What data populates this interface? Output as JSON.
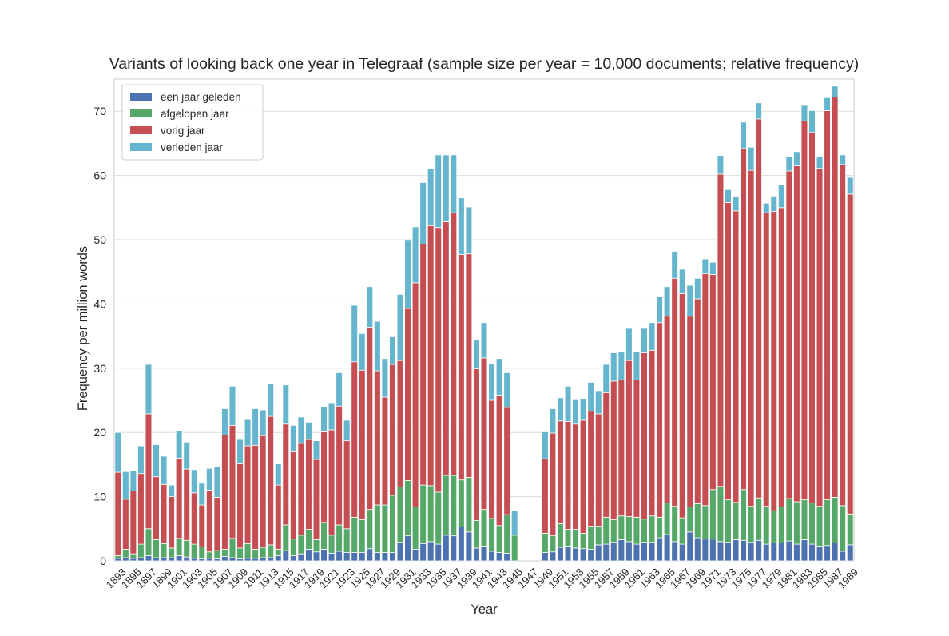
{
  "chart_data": {
    "type": "bar",
    "stacked": true,
    "title": "Variants of looking back one year in Telegraaf (sample size per year = 10,000 documents; relative frequency)",
    "xlabel": "Year",
    "ylabel": "Frequency per million words",
    "ylim": [
      0,
      75
    ],
    "yticks": [
      0,
      10,
      20,
      30,
      40,
      50,
      60,
      70
    ],
    "grid": true,
    "legend_position": "top-left",
    "categories": [
      1893,
      1894,
      1895,
      1896,
      1897,
      1898,
      1899,
      1900,
      1901,
      1902,
      1903,
      1904,
      1905,
      1906,
      1907,
      1908,
      1909,
      1910,
      1911,
      1912,
      1913,
      1914,
      1915,
      1916,
      1917,
      1918,
      1919,
      1920,
      1921,
      1922,
      1923,
      1924,
      1925,
      1926,
      1927,
      1928,
      1929,
      1930,
      1931,
      1932,
      1933,
      1934,
      1935,
      1936,
      1937,
      1938,
      1939,
      1940,
      1941,
      1942,
      1943,
      1944,
      1945,
      1946,
      1947,
      1948,
      1949,
      1950,
      1951,
      1952,
      1953,
      1954,
      1955,
      1956,
      1957,
      1958,
      1959,
      1960,
      1961,
      1962,
      1963,
      1964,
      1965,
      1966,
      1967,
      1968,
      1969,
      1970,
      1971,
      1972,
      1973,
      1974,
      1975,
      1976,
      1977,
      1978,
      1979,
      1980,
      1981,
      1982,
      1983,
      1984,
      1985,
      1986,
      1987,
      1988,
      1989
    ],
    "tick_labels": [
      "1893",
      "1895",
      "1897",
      "1899",
      "1901",
      "1903",
      "1905",
      "1907",
      "1909",
      "1911",
      "1913",
      "1915",
      "1917",
      "1919",
      "1921",
      "1923",
      "1925",
      "1927",
      "1929",
      "1931",
      "1933",
      "1935",
      "1937",
      "1939",
      "1941",
      "1943",
      "1945",
      "1947",
      "1949",
      "1951",
      "1953",
      "1955",
      "1957",
      "1959",
      "1961",
      "1963",
      "1965",
      "1967",
      "1969",
      "1971",
      "1973",
      "1975",
      "1977",
      "1979",
      "1981",
      "1983",
      "1985",
      "1987",
      "1989"
    ],
    "series": [
      {
        "name": "een jaar geleden",
        "color": "#4c72b0",
        "values": [
          0.4,
          0.5,
          0.4,
          0.5,
          0.8,
          0.5,
          0.5,
          0.5,
          0.8,
          0.6,
          0.4,
          0.3,
          0.4,
          0.3,
          0.7,
          0.5,
          0.3,
          0.4,
          0.4,
          0.5,
          0.5,
          0.8,
          1.6,
          0.8,
          1.1,
          1.8,
          1.4,
          1.8,
          1.2,
          1.5,
          1.3,
          1.3,
          1.3,
          1.9,
          1.3,
          1.3,
          1.3,
          2.9,
          3.9,
          1.8,
          2.7,
          3.0,
          2.6,
          4.0,
          3.9,
          5.3,
          4.5,
          2.0,
          2.3,
          1.5,
          1.3,
          1.2,
          0,
          0,
          0,
          0,
          1.3,
          1.4,
          2.1,
          2.3,
          2.0,
          1.9,
          1.8,
          2.5,
          2.6,
          2.9,
          3.3,
          3.0,
          2.6,
          2.9,
          2.9,
          3.6,
          4.1,
          3.0,
          2.6,
          4.5,
          3.6,
          3.4,
          3.4,
          3.0,
          2.9,
          3.3,
          3.2,
          2.9,
          3.2,
          2.6,
          2.8,
          2.8,
          3.1,
          2.6,
          3.3,
          2.6,
          2.3,
          2.4,
          2.8,
          1.5,
          2.5
        ]
      },
      {
        "name": "afgelopen jaar",
        "color": "#55a868",
        "values": [
          0.4,
          1.3,
          0.7,
          2.1,
          4.2,
          2.8,
          2.2,
          1.5,
          2.7,
          2.6,
          2.2,
          1.9,
          1.0,
          1.3,
          1.1,
          3.0,
          1.7,
          2.3,
          1.4,
          1.6,
          2.0,
          1.0,
          4.0,
          2.6,
          2.9,
          3.1,
          1.9,
          4.2,
          2.8,
          4.1,
          3.7,
          5.5,
          5.1,
          6.1,
          7.4,
          7.4,
          8.9,
          8.6,
          8.6,
          6.6,
          9.1,
          8.7,
          8.1,
          9.3,
          9.4,
          7.3,
          8.5,
          4.3,
          5.7,
          5.1,
          4.2,
          6.0,
          4.0,
          0,
          0,
          0,
          3.0,
          2.5,
          3.7,
          2.6,
          2.9,
          2.4,
          3.6,
          2.9,
          4.2,
          3.5,
          3.7,
          3.9,
          4.2,
          3.6,
          4.1,
          3.2,
          4.9,
          5.5,
          4.1,
          3.9,
          5.3,
          5.2,
          7.7,
          8.6,
          6.6,
          5.8,
          7.9,
          5.6,
          6.6,
          5.9,
          5.0,
          5.6,
          6.6,
          6.6,
          6.2,
          6.4,
          6.2,
          7.1,
          7.1,
          7.1,
          4.8
        ]
      },
      {
        "name": "vorig jaar",
        "color": "#c44e52",
        "values": [
          13.0,
          7.8,
          9.8,
          11.0,
          17.9,
          9.8,
          9.2,
          8.0,
          12.5,
          11.1,
          8.0,
          6.5,
          9.6,
          8.3,
          17.8,
          17.6,
          13.1,
          15.2,
          16.2,
          17.4,
          20.0,
          10.0,
          15.7,
          13.6,
          14.3,
          14.0,
          12.5,
          14.1,
          16.4,
          18.5,
          13.7,
          24.2,
          23.3,
          28.4,
          20.9,
          16.8,
          20.4,
          19.7,
          26.8,
          34.9,
          37.5,
          40.5,
          41.2,
          39.5,
          40.9,
          35.1,
          34.8,
          23.6,
          23.6,
          18.4,
          20.3,
          16.7,
          0,
          0,
          0,
          0,
          11.6,
          16.0,
          16.0,
          16.8,
          16.4,
          17.6,
          17.9,
          17.5,
          19.4,
          21.6,
          21.2,
          24.3,
          21.4,
          25.9,
          25.8,
          30.3,
          29.1,
          35.5,
          34.9,
          29.7,
          31.9,
          36.1,
          33.5,
          48.6,
          46.3,
          45.4,
          53.1,
          52.3,
          59.0,
          45.7,
          46.6,
          46.6,
          51.0,
          52.3,
          59.0,
          57.7,
          52.6,
          60.6,
          62.3,
          53.1,
          49.8
        ]
      },
      {
        "name": "verleden jaar",
        "color": "#64b5cd",
        "values": [
          6.2,
          4.3,
          3.2,
          4.3,
          7.7,
          5.0,
          4.4,
          1.8,
          4.2,
          4.2,
          3.6,
          3.4,
          3.4,
          4.8,
          4.1,
          6.1,
          3.8,
          4.1,
          5.7,
          4.0,
          5.1,
          3.3,
          6.1,
          4.1,
          4.1,
          2.7,
          2.9,
          3.9,
          4.1,
          5.2,
          3.2,
          8.8,
          5.7,
          6.3,
          7.7,
          6.0,
          4.3,
          10.3,
          10.6,
          8.7,
          9.6,
          8.9,
          11.3,
          10.4,
          9.0,
          8.8,
          7.3,
          4.6,
          5.5,
          5.7,
          5.7,
          5.4,
          3.8,
          0,
          0,
          0,
          4.2,
          3.8,
          3.6,
          5.5,
          3.8,
          3.4,
          4.5,
          3.6,
          4.4,
          4.4,
          4.4,
          5.0,
          4.4,
          3.8,
          4.3,
          4.0,
          4.6,
          4.2,
          3.8,
          4.8,
          3.2,
          2.3,
          1.9,
          2.9,
          2.0,
          2.2,
          4.1,
          3.6,
          2.5,
          1.5,
          2.4,
          3.6,
          2.2,
          2.2,
          2.4,
          3.4,
          1.9,
          2.0,
          1.7,
          1.5,
          2.6
        ]
      }
    ]
  }
}
